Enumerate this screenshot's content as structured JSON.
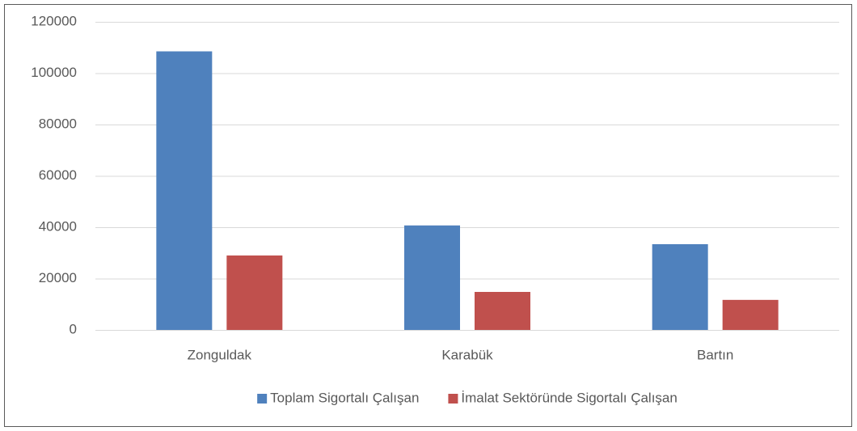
{
  "chart_data": {
    "type": "bar",
    "categories": [
      "Zonguldak",
      "Karabük",
      "Bartın"
    ],
    "series": [
      {
        "name": "Toplam Sigortalı Çalışan",
        "color": "#4f81bd",
        "values": [
          108500,
          40700,
          33400
        ]
      },
      {
        "name": "İmalat Sektöründe Sigortalı Çalışan",
        "color": "#c0504d",
        "values": [
          29000,
          14800,
          11700
        ]
      }
    ],
    "ylim": [
      0,
      120000
    ],
    "yticks": [
      0,
      20000,
      40000,
      60000,
      80000,
      100000,
      120000
    ],
    "grid": true,
    "legend": "bottom"
  }
}
